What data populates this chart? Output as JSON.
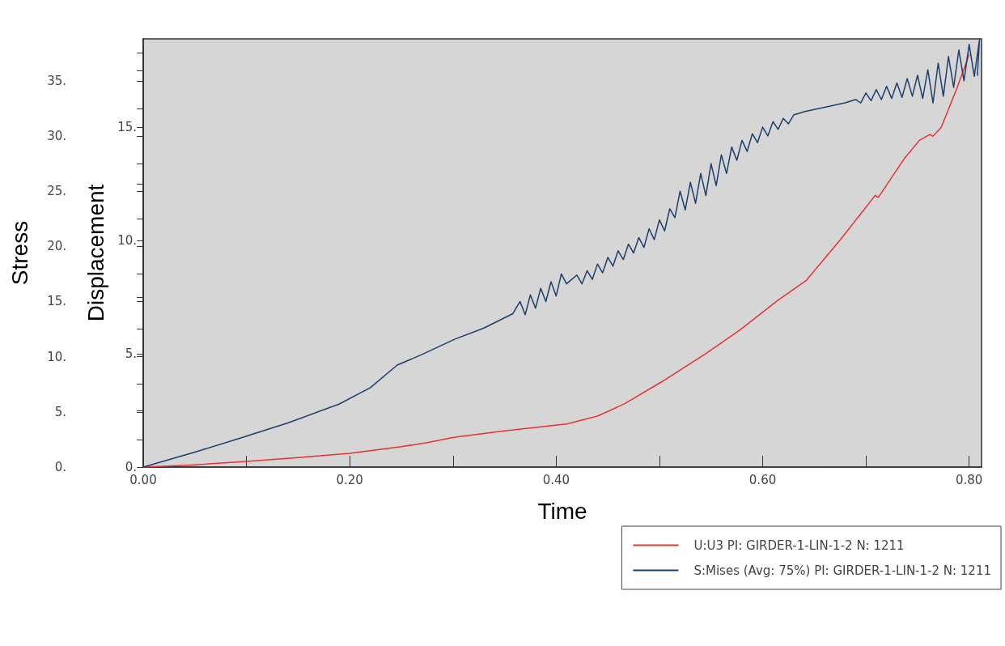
{
  "chart_data": {
    "type": "line",
    "xlabel": "Time",
    "ylabel": "Stress",
    "y2label": "Displacement",
    "xlim": [
      0,
      0.812
    ],
    "xticks": [
      {
        "value": 0,
        "label": "0.00"
      },
      {
        "value": 0.1,
        "label": null
      },
      {
        "value": 0.2,
        "label": "0.20"
      },
      {
        "value": 0.3,
        "label": null
      },
      {
        "value": 0.4,
        "label": "0.40"
      },
      {
        "value": 0.5,
        "label": null
      },
      {
        "value": 0.6,
        "label": "0.60"
      },
      {
        "value": 0.7,
        "label": null
      },
      {
        "value": 0.8,
        "label": "0.80"
      }
    ],
    "ylim": [
      0,
      38.8
    ],
    "yticks": [
      {
        "value": 0,
        "label": "0."
      },
      {
        "value": 2.5,
        "label": null
      },
      {
        "value": 5,
        "label": "5."
      },
      {
        "value": 7.5,
        "label": null
      },
      {
        "value": 10,
        "label": "10."
      },
      {
        "value": 12.5,
        "label": null
      },
      {
        "value": 15,
        "label": "15."
      },
      {
        "value": 17.5,
        "label": null
      },
      {
        "value": 20,
        "label": "20."
      },
      {
        "value": 22.5,
        "label": null
      },
      {
        "value": 25,
        "label": "25."
      },
      {
        "value": 27.5,
        "label": null
      },
      {
        "value": 30,
        "label": "30."
      },
      {
        "value": 32.5,
        "label": null
      },
      {
        "value": 35,
        "label": "35."
      },
      {
        "value": 37.5,
        "label": null
      }
    ],
    "y2lim": [
      0,
      18.9
    ],
    "y2ticks": [
      {
        "value": 0,
        "label": "0."
      },
      {
        "value": 2.5,
        "label": null
      },
      {
        "value": 5,
        "label": "5."
      },
      {
        "value": 7.5,
        "label": null
      },
      {
        "value": 10,
        "label": "10."
      },
      {
        "value": 12.5,
        "label": null
      },
      {
        "value": 15,
        "label": "15."
      },
      {
        "value": 17.5,
        "label": null
      }
    ],
    "grid": false,
    "legend": "bottom right",
    "marker": "none",
    "line_style": "solid",
    "series": [
      {
        "name": "U:U3 PI: GIRDER-1-LIN-1-2 N: 1211",
        "color": "#e8322f",
        "axis": "y2",
        "x": [
          0,
          0.05,
          0.1,
          0.15,
          0.2,
          0.25,
          0.274,
          0.302,
          0.35,
          0.41,
          0.44,
          0.466,
          0.502,
          0.544,
          0.578,
          0.614,
          0.642,
          0.675,
          0.709,
          0.712,
          0.737,
          0.752,
          0.762,
          0.765,
          0.773,
          0.788,
          0.8
        ],
        "values": [
          0,
          0.1,
          0.25,
          0.42,
          0.61,
          0.9,
          1.07,
          1.32,
          1.6,
          1.9,
          2.25,
          2.79,
          3.76,
          4.98,
          6.05,
          7.34,
          8.23,
          10.02,
          11.99,
          11.9,
          13.6,
          14.43,
          14.68,
          14.6,
          15.0,
          16.7,
          18.2
        ]
      },
      {
        "name": "S:Mises (Avg: 75%) PI: GIRDER-1-LIN-1-2 N: 1211",
        "color": "#1d3e6b",
        "axis": "y",
        "x": [
          0,
          0.05,
          0.092,
          0.14,
          0.19,
          0.22,
          0.246,
          0.27,
          0.302,
          0.33,
          0.358,
          0.365,
          0.37,
          0.375,
          0.38,
          0.385,
          0.39,
          0.395,
          0.4,
          0.405,
          0.41,
          0.42,
          0.425,
          0.43,
          0.435,
          0.44,
          0.445,
          0.45,
          0.455,
          0.46,
          0.465,
          0.47,
          0.475,
          0.48,
          0.485,
          0.49,
          0.495,
          0.5,
          0.505,
          0.51,
          0.515,
          0.52,
          0.525,
          0.53,
          0.535,
          0.54,
          0.545,
          0.55,
          0.555,
          0.56,
          0.565,
          0.57,
          0.575,
          0.58,
          0.585,
          0.59,
          0.595,
          0.6,
          0.605,
          0.61,
          0.615,
          0.62,
          0.625,
          0.63,
          0.64,
          0.65,
          0.66,
          0.67,
          0.68,
          0.69,
          0.695,
          0.7,
          0.705,
          0.71,
          0.715,
          0.72,
          0.725,
          0.73,
          0.735,
          0.74,
          0.745,
          0.75,
          0.755,
          0.76,
          0.765,
          0.77,
          0.775,
          0.78,
          0.785,
          0.79,
          0.795,
          0.8,
          0.805,
          0.81,
          0.808
        ],
        "values": [
          0,
          1.35,
          2.57,
          4.0,
          5.72,
          7.2,
          9.24,
          10.2,
          11.6,
          12.6,
          13.9,
          15.0,
          13.8,
          15.6,
          14.4,
          16.2,
          15.0,
          16.8,
          15.5,
          17.5,
          16.6,
          17.4,
          16.6,
          17.8,
          17.0,
          18.4,
          17.6,
          19.0,
          18.2,
          19.6,
          18.8,
          20.2,
          19.4,
          20.8,
          19.9,
          21.6,
          20.6,
          22.4,
          21.4,
          23.4,
          22.6,
          25.0,
          23.3,
          25.8,
          23.9,
          26.6,
          24.6,
          27.5,
          25.5,
          28.3,
          26.6,
          29.0,
          27.8,
          29.6,
          28.6,
          30.2,
          29.4,
          30.8,
          30.0,
          31.3,
          30.6,
          31.6,
          31.1,
          31.9,
          32.2,
          32.4,
          32.6,
          32.8,
          33.0,
          33.3,
          33.0,
          33.9,
          33.2,
          34.2,
          33.3,
          34.5,
          33.4,
          34.8,
          33.5,
          35.2,
          33.6,
          35.5,
          33.4,
          36.0,
          33.0,
          36.6,
          33.6,
          37.2,
          34.4,
          37.8,
          35.0,
          38.3,
          35.4,
          38.7,
          35.5
        ]
      }
    ]
  }
}
